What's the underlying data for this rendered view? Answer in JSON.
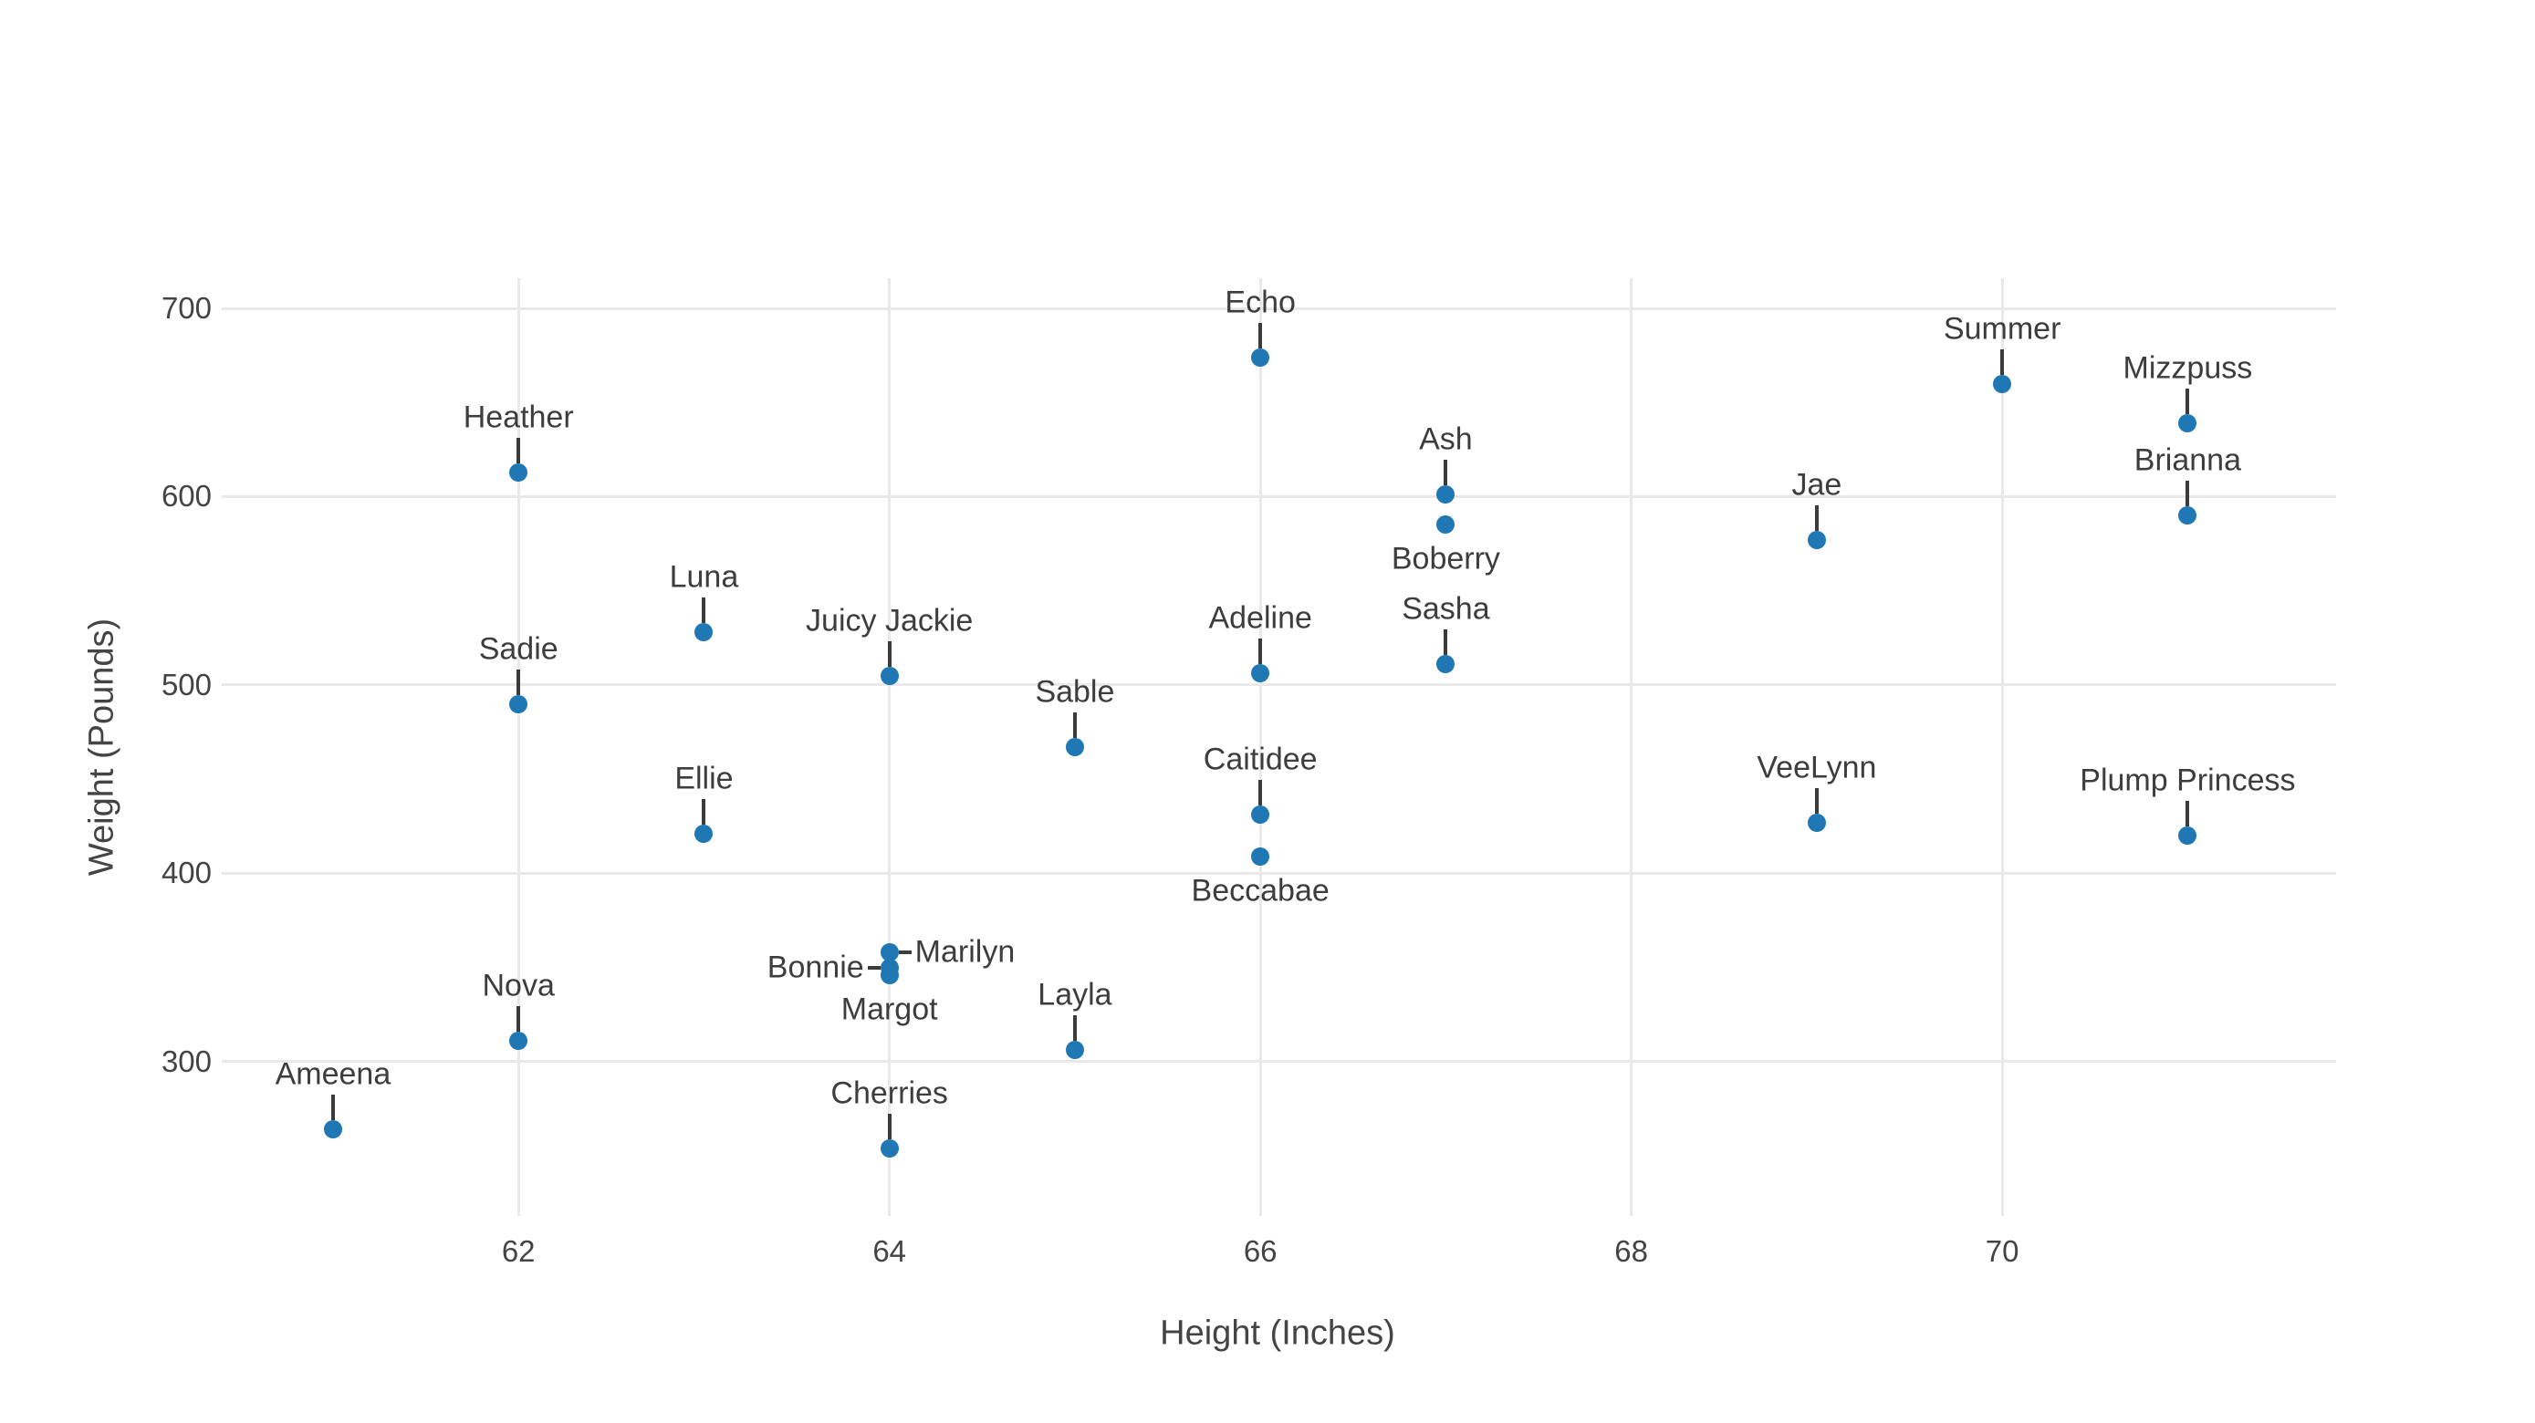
{
  "chart_data": {
    "type": "scatter",
    "title": "",
    "xlabel": "Height (Inches)",
    "ylabel": "Weight (Pounds)",
    "x_ticks": [
      62,
      64,
      66,
      68,
      70
    ],
    "y_ticks": [
      300,
      400,
      500,
      600,
      700
    ],
    "x_range": [
      60.4,
      71.8
    ],
    "y_range": [
      218,
      716
    ],
    "grid": "on",
    "legend": "none",
    "marker_color": "#1f77b4",
    "leader_color": "#3b3b3b",
    "text_color": "#444444",
    "gridline_color": "#e9e9e9",
    "background_color": "#ffffff",
    "points": [
      {
        "name": "Ameena",
        "height": 61,
        "weight": 264,
        "label_placement": "above"
      },
      {
        "name": "Nova",
        "height": 62,
        "weight": 311,
        "label_placement": "above"
      },
      {
        "name": "Sadie",
        "height": 62,
        "weight": 490,
        "label_placement": "above"
      },
      {
        "name": "Heather",
        "height": 62,
        "weight": 613,
        "label_placement": "above"
      },
      {
        "name": "Ellie",
        "height": 63,
        "weight": 421,
        "label_placement": "above"
      },
      {
        "name": "Luna",
        "height": 63,
        "weight": 528,
        "label_placement": "above"
      },
      {
        "name": "Cherries",
        "height": 64,
        "weight": 254,
        "label_placement": "above"
      },
      {
        "name": "Margot",
        "height": 64,
        "weight": 346,
        "label_placement": "below"
      },
      {
        "name": "Bonnie",
        "height": 64,
        "weight": 350,
        "label_placement": "left"
      },
      {
        "name": "Marilyn",
        "height": 64,
        "weight": 358,
        "label_placement": "right"
      },
      {
        "name": "Juicy Jackie",
        "height": 64,
        "weight": 505,
        "label_placement": "above"
      },
      {
        "name": "Layla",
        "height": 65,
        "weight": 306,
        "label_placement": "above"
      },
      {
        "name": "Sable",
        "height": 65,
        "weight": 467,
        "label_placement": "above"
      },
      {
        "name": "Beccabae",
        "height": 66,
        "weight": 409,
        "label_placement": "below"
      },
      {
        "name": "Caitidee",
        "height": 66,
        "weight": 431,
        "label_placement": "above"
      },
      {
        "name": "Adeline",
        "height": 66,
        "weight": 506,
        "label_placement": "above"
      },
      {
        "name": "Echo",
        "height": 66,
        "weight": 674,
        "label_placement": "above"
      },
      {
        "name": "Sasha",
        "height": 67,
        "weight": 511,
        "label_placement": "above"
      },
      {
        "name": "Boberry",
        "height": 67,
        "weight": 585,
        "label_placement": "below"
      },
      {
        "name": "Ash",
        "height": 67,
        "weight": 601,
        "label_placement": "above"
      },
      {
        "name": "Jae",
        "height": 69,
        "weight": 577,
        "label_placement": "above"
      },
      {
        "name": "VeeLynn",
        "height": 69,
        "weight": 427,
        "label_placement": "above"
      },
      {
        "name": "Summer",
        "height": 70,
        "weight": 660,
        "label_placement": "above"
      },
      {
        "name": "Mizzpuss",
        "height": 71,
        "weight": 639,
        "label_placement": "above"
      },
      {
        "name": "Brianna",
        "height": 71,
        "weight": 590,
        "label_placement": "above"
      },
      {
        "name": "Plump Princess",
        "height": 71,
        "weight": 420,
        "label_placement": "above"
      }
    ]
  }
}
